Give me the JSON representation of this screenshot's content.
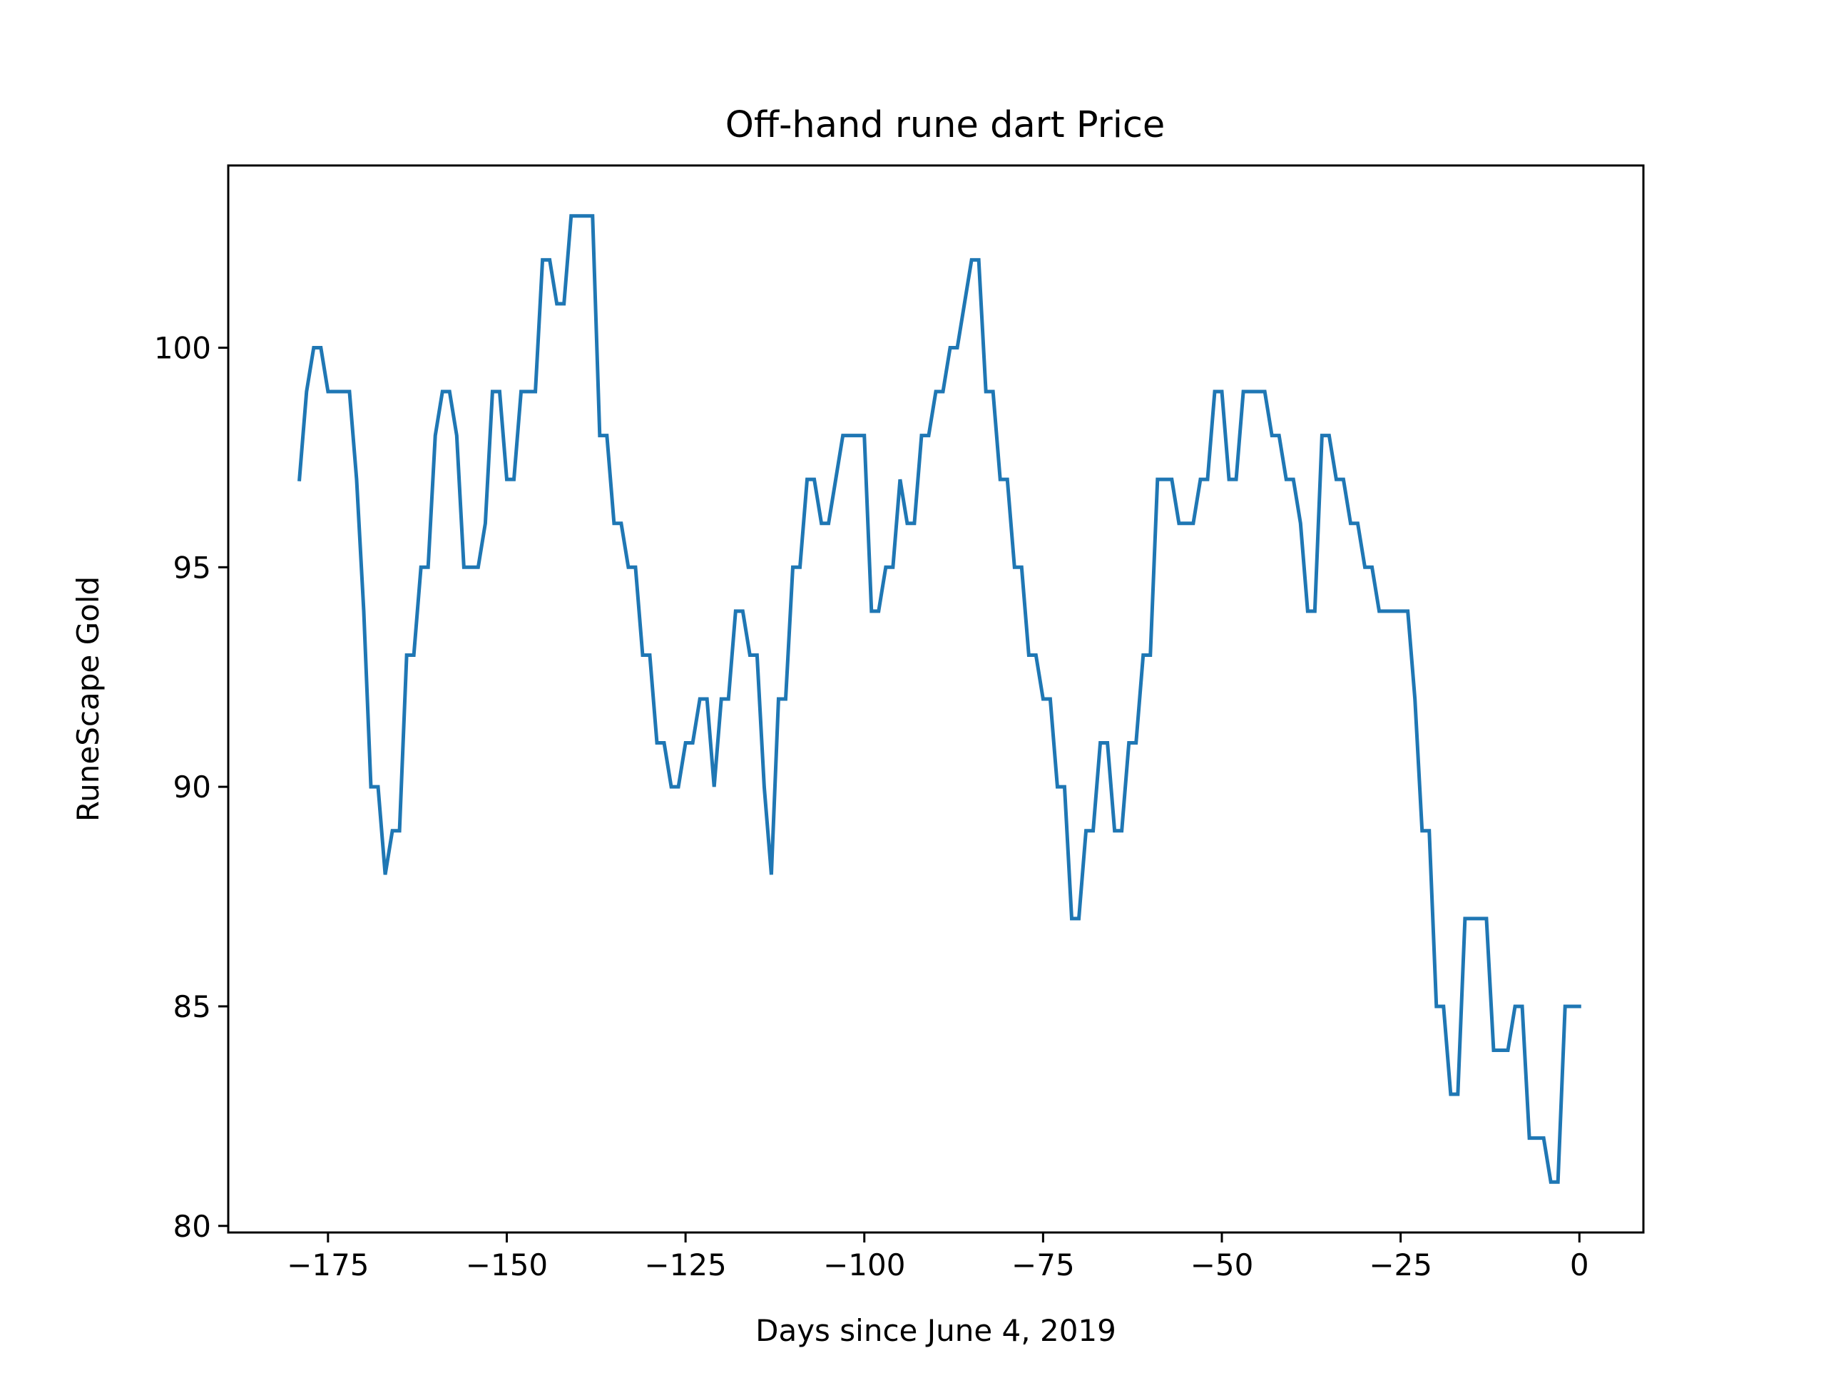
{
  "chart_data": {
    "type": "line",
    "title": "Off-hand rune dart Price",
    "xlabel": "Days since June 4, 2019",
    "ylabel": "RuneScape Gold",
    "xlim": [
      -188.95,
      8.95
    ],
    "ylim": [
      79.85,
      104.15
    ],
    "xticks": [
      -175,
      -150,
      -125,
      -100,
      -75,
      -50,
      -25,
      0
    ],
    "xtick_labels": [
      "−175",
      "−150",
      "−125",
      "−100",
      "−75",
      "−50",
      "−25",
      "0"
    ],
    "yticks": [
      80,
      85,
      90,
      95,
      100
    ],
    "ytick_labels": [
      "80",
      "85",
      "90",
      "95",
      "100"
    ],
    "grid": false,
    "line_color": "#1f77b4",
    "series": [
      {
        "x": [
          -179,
          -178,
          -177,
          -176,
          -175,
          -174,
          -173,
          -172,
          -171,
          -170,
          -169,
          -168,
          -167,
          -166,
          -165,
          -164,
          -163,
          -162,
          -161,
          -160,
          -159,
          -158,
          -157,
          -156,
          -155,
          -154,
          -153,
          -152,
          -151,
          -150,
          -149,
          -148,
          -147,
          -146,
          -145,
          -144,
          -143,
          -142,
          -141,
          -140,
          -139,
          -138,
          -137,
          -136,
          -135,
          -134,
          -133,
          -132,
          -131,
          -130,
          -129,
          -128,
          -127,
          -126,
          -125,
          -124,
          -123,
          -122,
          -121,
          -120,
          -119,
          -118,
          -117,
          -116,
          -115,
          -114,
          -113,
          -112,
          -111,
          -110,
          -109,
          -108,
          -107,
          -106,
          -105,
          -104,
          -103,
          -102,
          -101,
          -100,
          -99,
          -98,
          -97,
          -96,
          -95,
          -94,
          -93,
          -92,
          -91,
          -90,
          -89,
          -88,
          -87,
          -86,
          -85,
          -84,
          -83,
          -82,
          -81,
          -80,
          -79,
          -78,
          -77,
          -76,
          -75,
          -74,
          -73,
          -72,
          -71,
          -70,
          -69,
          -68,
          -67,
          -66,
          -65,
          -64,
          -63,
          -62,
          -61,
          -60,
          -59,
          -58,
          -57,
          -56,
          -55,
          -54,
          -53,
          -52,
          -51,
          -50,
          -49,
          -48,
          -47,
          -46,
          -45,
          -44,
          -43,
          -42,
          -41,
          -40,
          -39,
          -38,
          -37,
          -36,
          -35,
          -34,
          -33,
          -32,
          -31,
          -30,
          -29,
          -28,
          -27,
          -26,
          -25,
          -24,
          -23,
          -22,
          -21,
          -20,
          -19,
          -18,
          -17,
          -16,
          -15,
          -14,
          -13,
          -12,
          -11,
          -10,
          -9,
          -8,
          -7,
          -6,
          -5,
          -4,
          -3,
          -2,
          -1,
          0
        ],
        "y": [
          97,
          99,
          100,
          100,
          99,
          99,
          99,
          99,
          97,
          94,
          90,
          90,
          88,
          89,
          89,
          93,
          93,
          95,
          95,
          98,
          99,
          99,
          98,
          95,
          95,
          95,
          96,
          99,
          99,
          97,
          97,
          99,
          99,
          99,
          102,
          102,
          101,
          101,
          103,
          103,
          103,
          103,
          98,
          98,
          96,
          96,
          95,
          95,
          93,
          93,
          91,
          91,
          90,
          90,
          91,
          91,
          92,
          92,
          90,
          92,
          92,
          94,
          94,
          93,
          93,
          90,
          88,
          92,
          92,
          95,
          95,
          97,
          97,
          96,
          96,
          97,
          98,
          98,
          98,
          98,
          94,
          94,
          95,
          95,
          97,
          96,
          96,
          98,
          98,
          99,
          99,
          100,
          100,
          101,
          102,
          102,
          99,
          99,
          97,
          97,
          95,
          95,
          93,
          93,
          92,
          92,
          90,
          90,
          87,
          87,
          89,
          89,
          91,
          91,
          89,
          89,
          91,
          91,
          93,
          93,
          97,
          97,
          97,
          96,
          96,
          96,
          97,
          97,
          99,
          99,
          97,
          97,
          99,
          99,
          99,
          99,
          98,
          98,
          97,
          97,
          96,
          94,
          94,
          98,
          98,
          97,
          97,
          96,
          96,
          95,
          95,
          94,
          94,
          94,
          94,
          94,
          92,
          89,
          89,
          85,
          85,
          83,
          83,
          87,
          87,
          87,
          87,
          84,
          84,
          84,
          85,
          85,
          82,
          82,
          82,
          81,
          81,
          85,
          85,
          85
        ]
      }
    ]
  }
}
